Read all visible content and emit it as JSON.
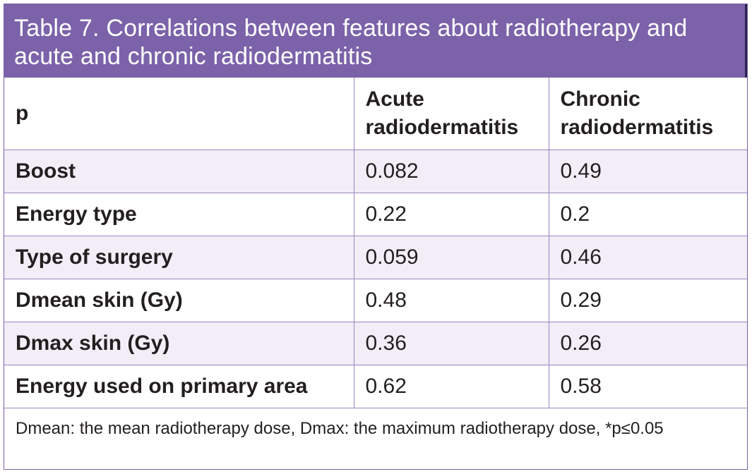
{
  "title": "Table 7. Correlations between features about radiotherapy and acute and chronic radiodermatitis",
  "table": {
    "headers": [
      "p",
      "Acute radiodermatitis",
      "Chronic radiodermatitis"
    ],
    "rows": [
      {
        "feature": "Boost",
        "acute": "0.082",
        "chronic": "0.49"
      },
      {
        "feature": "Energy type",
        "acute": "0.22",
        "chronic": "0.2"
      },
      {
        "feature": "Type of surgery",
        "acute": "0.059",
        "chronic": "0.46"
      },
      {
        "feature": "Dmean skin (Gy)",
        "acute": "0.48",
        "chronic": "0.29"
      },
      {
        "feature": "Dmax skin (Gy)",
        "acute": "0.36",
        "chronic": "0.26"
      },
      {
        "feature": "Energy used on primary area",
        "acute": "0.62",
        "chronic": "0.58"
      }
    ]
  },
  "footnote": "Dmean: the mean radiotherapy dose, Dmax: the maximum radiotherapy dose, *p≤0.05",
  "colors": {
    "title_background": "#7b62a9",
    "row_shade": "#f1eef7",
    "border": "#9a86c2"
  }
}
